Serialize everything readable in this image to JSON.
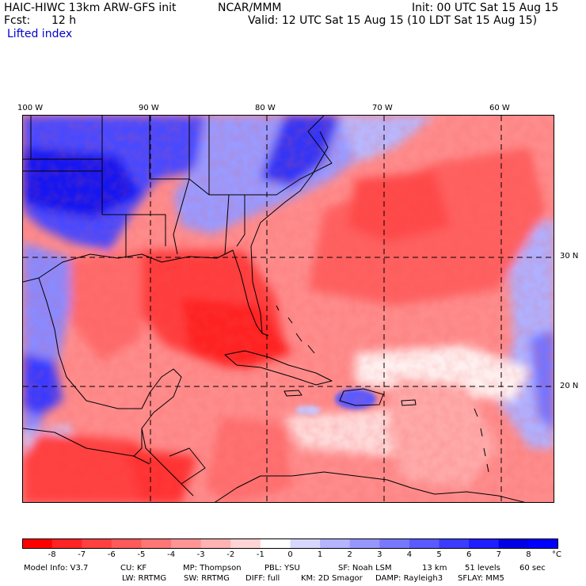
{
  "header": {
    "model_title": "HAIC-HIWC 13km ARW-GFS init",
    "org": "NCAR/MMM",
    "init_label": "Init: 00 UTC Sat 15 Aug 15",
    "fcst_label": "Fcst:",
    "fcst_value": "12 h",
    "valid_label": "Valid: 12 UTC Sat 15 Aug 15 (10 LDT Sat 15 Aug 15)",
    "field_name": "Lifted index"
  },
  "map": {
    "lon_labels": [
      "100 W",
      "90 W",
      "80 W",
      "70 W",
      "60 W"
    ],
    "lat_labels": [
      "30 N",
      "20 N"
    ]
  },
  "colorbar": {
    "unit": "°C",
    "ticks": [
      "-8",
      "-7",
      "-6",
      "-5",
      "-4",
      "-3",
      "-2",
      "-1",
      "0",
      "1",
      "2",
      "3",
      "4",
      "5",
      "6",
      "7",
      "8"
    ],
    "colors": [
      "#ff0000",
      "#ff2424",
      "#ff4040",
      "#ff5a5a",
      "#ff7676",
      "#ff9494",
      "#ffb3b3",
      "#ffd4d4",
      "#ffffff",
      "#d6d6ff",
      "#b4b4ff",
      "#9696ff",
      "#7878ff",
      "#5a5aff",
      "#3c3cff",
      "#1e1eff",
      "#0000e6",
      "#0000ff"
    ]
  },
  "footer": {
    "line1": [
      "Model Info: V3.7",
      "CU: KF",
      "MP: Thompson",
      "PBL: YSU",
      "SF: Noah LSM",
      "13 km",
      "51 levels",
      "60 sec"
    ],
    "line2": [
      "LW: RRTMG",
      "SW: RRTMG",
      "DIFF: full",
      "KM: 2D Smagor",
      "DAMP: Rayleigh3",
      "SFLAY: MM5"
    ]
  }
}
